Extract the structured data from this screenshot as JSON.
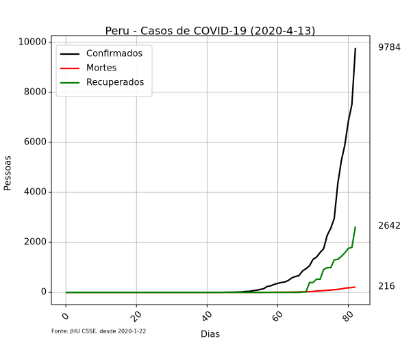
{
  "chart_data": {
    "type": "line",
    "title": "Peru - Casos de COVID-19 (2020-4-13)",
    "xlabel": "Dias",
    "ylabel": "Pessoas",
    "footnote": "Fonte: JHU CSSE, desde 2020-1-22",
    "x": [
      0,
      1,
      2,
      3,
      4,
      5,
      6,
      7,
      8,
      9,
      10,
      11,
      12,
      13,
      14,
      15,
      16,
      17,
      18,
      19,
      20,
      21,
      22,
      23,
      24,
      25,
      26,
      27,
      28,
      29,
      30,
      31,
      32,
      33,
      34,
      35,
      36,
      37,
      38,
      39,
      40,
      41,
      42,
      43,
      44,
      45,
      46,
      47,
      48,
      49,
      50,
      51,
      52,
      53,
      54,
      55,
      56,
      57,
      58,
      59,
      60,
      61,
      62,
      63,
      64,
      65,
      66,
      67,
      68,
      69,
      70,
      71,
      72,
      73,
      74,
      75,
      76,
      77,
      78,
      79,
      80,
      81,
      82
    ],
    "series": [
      {
        "name": "Confirmados",
        "color": "#000000",
        "values": [
          0,
          0,
          0,
          0,
          0,
          0,
          0,
          0,
          0,
          0,
          0,
          0,
          0,
          0,
          0,
          0,
          0,
          0,
          0,
          0,
          0,
          0,
          0,
          0,
          0,
          0,
          0,
          0,
          0,
          0,
          0,
          0,
          0,
          0,
          0,
          0,
          0,
          0,
          0,
          0,
          0,
          0,
          0,
          0,
          1,
          6,
          7,
          9,
          11,
          15,
          22,
          38,
          43,
          71,
          86,
          117,
          145,
          234,
          263,
          318,
          363,
          395,
          416,
          480,
          580,
          635,
          671,
          852,
          950,
          1065,
          1323,
          1414,
          1595,
          1746,
          2281,
          2561,
          2954,
          4342,
          5256,
          5897,
          6848,
          7519,
          9784
        ]
      },
      {
        "name": "Mortes",
        "color": "#ff0000",
        "values": [
          0,
          0,
          0,
          0,
          0,
          0,
          0,
          0,
          0,
          0,
          0,
          0,
          0,
          0,
          0,
          0,
          0,
          0,
          0,
          0,
          0,
          0,
          0,
          0,
          0,
          0,
          0,
          0,
          0,
          0,
          0,
          0,
          0,
          0,
          0,
          0,
          0,
          0,
          0,
          0,
          0,
          0,
          0,
          0,
          0,
          0,
          0,
          0,
          0,
          0,
          0,
          0,
          0,
          0,
          0,
          0,
          0,
          2,
          3,
          5,
          5,
          7,
          9,
          9,
          11,
          16,
          18,
          24,
          28,
          30,
          38,
          55,
          61,
          73,
          83,
          92,
          107,
          121,
          138,
          169,
          181,
          193,
          216
        ]
      },
      {
        "name": "Recuperados",
        "color": "#008000",
        "values": [
          0,
          0,
          0,
          0,
          0,
          0,
          0,
          0,
          0,
          0,
          0,
          0,
          0,
          0,
          0,
          0,
          0,
          0,
          0,
          0,
          0,
          0,
          0,
          0,
          0,
          0,
          0,
          0,
          0,
          0,
          0,
          0,
          0,
          0,
          0,
          0,
          0,
          0,
          0,
          0,
          0,
          0,
          0,
          0,
          0,
          0,
          0,
          0,
          0,
          0,
          0,
          0,
          0,
          0,
          0,
          0,
          0,
          0,
          0,
          0,
          0,
          0,
          0,
          0,
          0,
          0,
          0,
          14,
          16,
          394,
          394,
          528,
          528,
          914,
          989,
          989,
          1301,
          1324,
          1438,
          1581,
          1763,
          1798,
          2642
        ]
      }
    ],
    "xlim": [
      -4.1,
      86.1
    ],
    "xticks": [
      0,
      20,
      40,
      60,
      80
    ],
    "ylim": [
      -489.2,
      10273.2
    ],
    "yticks": [
      0,
      2000,
      4000,
      6000,
      8000,
      10000
    ],
    "grid": true,
    "legend": "upper left"
  }
}
